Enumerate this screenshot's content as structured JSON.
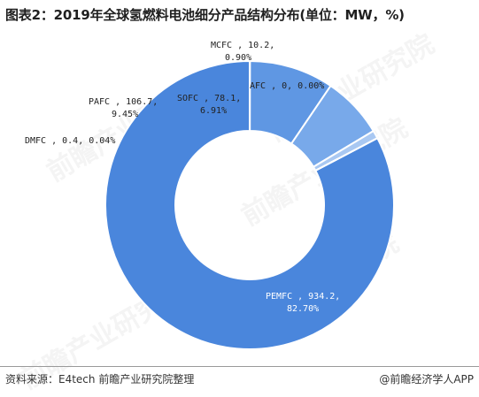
{
  "title": "图表2：2019年全球氢燃料电池细分产品结构分布(单位：MW，%)",
  "source": "资料来源：E4tech 前瞻产业研究院整理",
  "brand": "@前瞻经济学人APP",
  "watermark": "前瞻产业研究院",
  "chart_data": {
    "type": "pie",
    "donut": true,
    "title": "图表2：2019年全球氢燃料电池细分产品结构分布(单位：MW，%)",
    "categories": [
      "PEMFC",
      "DMFC",
      "PAFC",
      "SOFC",
      "MCFC",
      "AFC"
    ],
    "values": [
      934.2,
      0.4,
      106.7,
      78.1,
      10.2,
      0
    ],
    "percents": [
      "82.70%",
      "0.04%",
      "9.45%",
      "6.91%",
      "0.90%",
      "0.00%"
    ],
    "value_labels": [
      "934.2",
      "0.4",
      "106.7",
      "78.1",
      "10.2",
      "0"
    ],
    "colors": [
      "#4a86dc",
      "#3f7fd8",
      "#5f97e3",
      "#78a9ea",
      "#a9c8f2",
      "#c9ddf7"
    ],
    "legend": "none"
  }
}
